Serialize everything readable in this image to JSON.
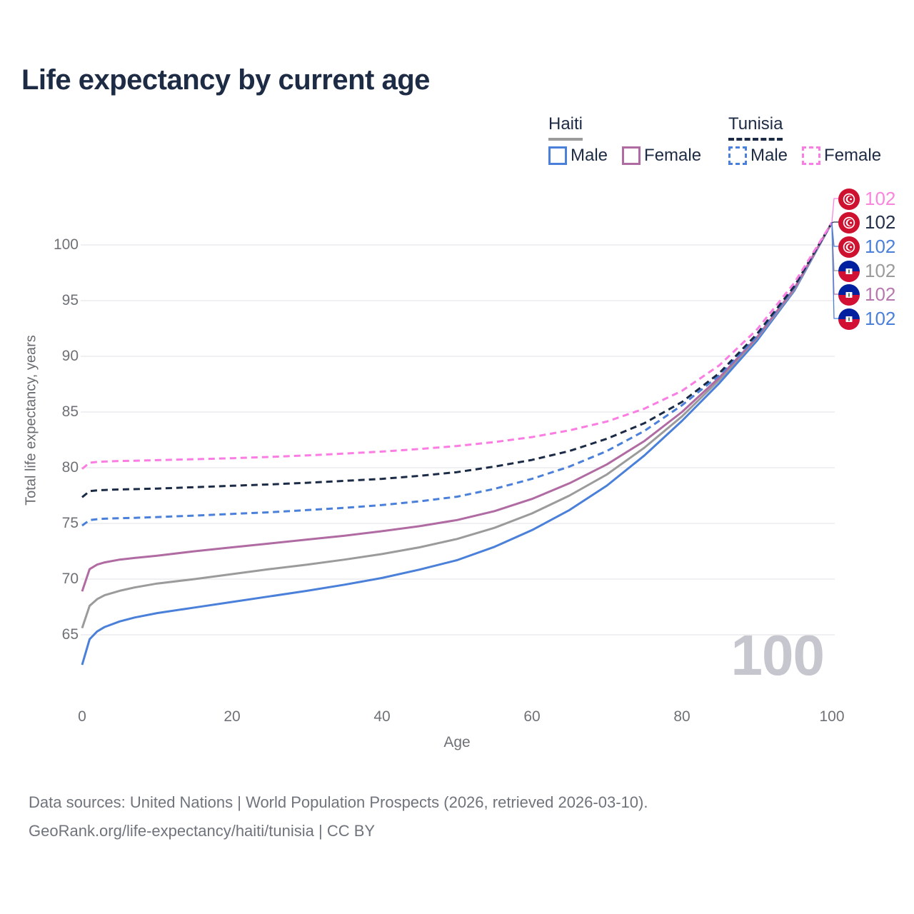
{
  "title": "Life expectancy by current age",
  "legend": {
    "haiti_label": "Haiti",
    "tunisia_label": "Tunisia",
    "haiti_male": "Male",
    "haiti_female": "Female",
    "tunisia_male": "Male",
    "tunisia_female": "Female"
  },
  "axes": {
    "y_label": "Total life expectancy, years",
    "x_label": "Age",
    "y_ticks": [
      "100",
      "95",
      "90",
      "85",
      "80",
      "75",
      "70",
      "65"
    ],
    "x_ticks": [
      "0",
      "20",
      "40",
      "60",
      "80",
      "100"
    ]
  },
  "watermark": "100",
  "end_labels": [
    {
      "flag": "tunisia",
      "series": "Tunisia Female",
      "value": "102",
      "color": "#fa85dd"
    },
    {
      "flag": "tunisia",
      "series": "Tunisia All",
      "value": "102",
      "color": "#24304a"
    },
    {
      "flag": "tunisia",
      "series": "Tunisia Male",
      "value": "102",
      "color": "#4a80d9"
    },
    {
      "flag": "haiti",
      "series": "Haiti All",
      "value": "102",
      "color": "#9b9b9b"
    },
    {
      "flag": "haiti",
      "series": "Haiti Female",
      "value": "102",
      "color": "#b678ae"
    },
    {
      "flag": "haiti",
      "series": "Haiti Male",
      "value": "102",
      "color": "#4a80d9"
    }
  ],
  "footer": {
    "line1": "Data sources: United Nations | World Population Prospects (2026, retrieved 2026-03-10).",
    "line2": "GeoRank.org/life-expectancy/haiti/tunisia | CC BY"
  },
  "colors": {
    "title_text": "#1d2b45",
    "haiti_male": "#4a80d9",
    "haiti_female": "#b06ba3",
    "haiti_all": "#9b9b9b",
    "tunisia_male": "#4a80d9",
    "tunisia_female": "#fb7ce2",
    "tunisia_all": "#1b2a45",
    "gridline": "#ececee",
    "tick_text": "#6e7176",
    "watermark_text": "#c6c6ce",
    "tunisia_flag_red": "#cf1130",
    "haiti_flag_blue": "#00209f",
    "haiti_flag_red": "#d21034"
  },
  "chart_data": {
    "type": "line",
    "title": "Life expectancy by current age",
    "xlabel": "Age",
    "ylabel": "Total life expectancy, years",
    "x_range": [
      0,
      100
    ],
    "y_range": [
      61.5,
      103
    ],
    "y_ticks": [
      65,
      70,
      75,
      80,
      85,
      90,
      95,
      100
    ],
    "x_ticks": [
      0,
      20,
      40,
      60,
      80,
      100
    ],
    "grid": "horizontal",
    "legend_position": "top-right",
    "hover_age_indicator": 100,
    "x": [
      0,
      1,
      2,
      3,
      5,
      7,
      10,
      15,
      20,
      25,
      30,
      35,
      40,
      45,
      50,
      55,
      60,
      65,
      70,
      75,
      80,
      85,
      90,
      95,
      100
    ],
    "series": [
      {
        "name": "Haiti Male",
        "country": "Haiti",
        "sex": "Male",
        "style": "solid",
        "color": "#4a80d9",
        "values": [
          62.3,
          64.6,
          65.3,
          65.7,
          66.2,
          66.55,
          66.95,
          67.45,
          67.95,
          68.45,
          68.95,
          69.5,
          70.1,
          70.85,
          71.7,
          72.9,
          74.4,
          76.2,
          78.4,
          81.1,
          84.2,
          87.6,
          91.4,
          95.9,
          102
        ]
      },
      {
        "name": "Haiti All",
        "country": "Haiti",
        "sex": "All",
        "style": "solid",
        "color": "#9b9b9b",
        "values": [
          65.6,
          67.6,
          68.2,
          68.55,
          68.95,
          69.25,
          69.6,
          70.0,
          70.45,
          70.9,
          71.3,
          71.75,
          72.25,
          72.85,
          73.6,
          74.6,
          75.9,
          77.5,
          79.4,
          81.8,
          84.6,
          87.9,
          91.6,
          96.0,
          102
        ]
      },
      {
        "name": "Haiti Female",
        "country": "Haiti",
        "sex": "Female",
        "style": "solid",
        "color": "#b06ba3",
        "values": [
          68.9,
          70.9,
          71.3,
          71.5,
          71.75,
          71.9,
          72.1,
          72.5,
          72.85,
          73.2,
          73.55,
          73.9,
          74.3,
          74.75,
          75.3,
          76.1,
          77.2,
          78.6,
          80.3,
          82.4,
          85.0,
          88.1,
          91.7,
          96.1,
          102
        ]
      },
      {
        "name": "Tunisia Male",
        "country": "Tunisia",
        "sex": "Male",
        "style": "dashed",
        "color": "#4a80d9",
        "values": [
          74.8,
          75.3,
          75.38,
          75.42,
          75.47,
          75.5,
          75.57,
          75.7,
          75.85,
          76.0,
          76.2,
          76.4,
          76.65,
          76.98,
          77.4,
          78.1,
          79.0,
          80.1,
          81.5,
          83.3,
          85.6,
          88.3,
          91.8,
          96.2,
          102
        ]
      },
      {
        "name": "Tunisia All",
        "country": "Tunisia",
        "sex": "All",
        "style": "dashed",
        "color": "#1b2a45",
        "values": [
          77.35,
          77.9,
          77.97,
          78.0,
          78.05,
          78.08,
          78.13,
          78.25,
          78.38,
          78.5,
          78.65,
          78.82,
          79.0,
          79.27,
          79.6,
          80.1,
          80.7,
          81.5,
          82.6,
          84.0,
          85.9,
          88.5,
          92.0,
          96.3,
          102
        ]
      },
      {
        "name": "Tunisia Female",
        "country": "Tunisia",
        "sex": "Female",
        "style": "dashed",
        "color": "#fb7ce2",
        "values": [
          79.9,
          80.45,
          80.52,
          80.55,
          80.6,
          80.63,
          80.68,
          80.76,
          80.85,
          80.97,
          81.1,
          81.27,
          81.45,
          81.68,
          81.95,
          82.3,
          82.75,
          83.35,
          84.15,
          85.3,
          86.9,
          89.2,
          92.4,
          96.6,
          102
        ]
      }
    ]
  }
}
